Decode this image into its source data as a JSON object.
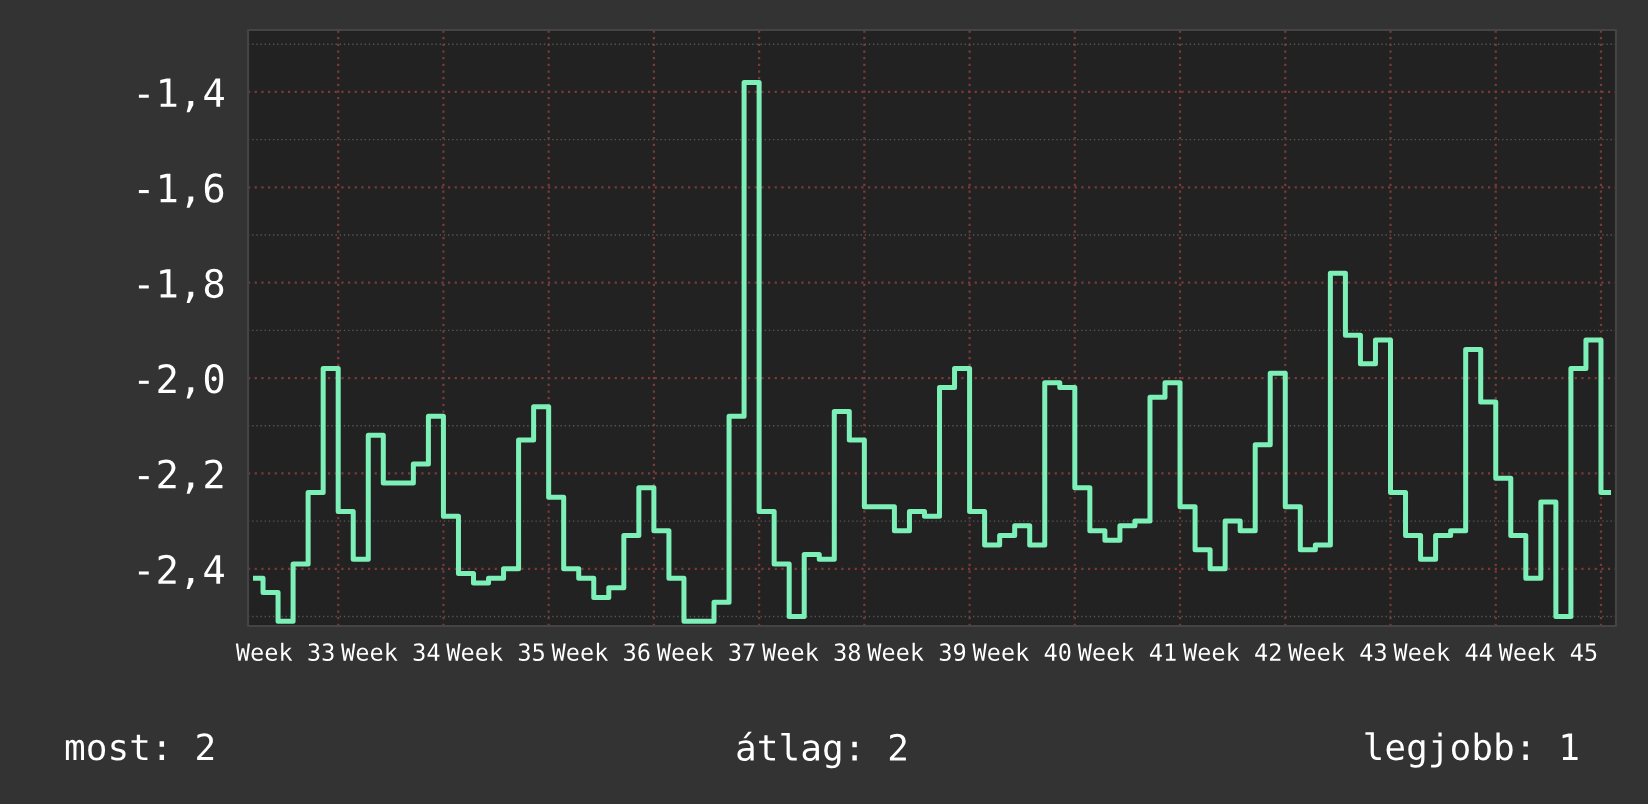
{
  "chart_data": {
    "type": "step",
    "categories": [
      null,
      null,
      "Week 33",
      null,
      null,
      null,
      null,
      null,
      null,
      "Week 34",
      null,
      null,
      null,
      null,
      null,
      null,
      "Week 35",
      null,
      null,
      null,
      null,
      null,
      null,
      "Week 36",
      null,
      null,
      null,
      null,
      null,
      null,
      "Week 37",
      null,
      null,
      null,
      null,
      null,
      null,
      "Week 38",
      null,
      null,
      null,
      null,
      null,
      null,
      "Week 39",
      null,
      null,
      null,
      null,
      null,
      null,
      "Week 40",
      null,
      null,
      null,
      null,
      null,
      null,
      "Week 41",
      null,
      null,
      null,
      null,
      null,
      null,
      "Week 42",
      null,
      null,
      null,
      null,
      null,
      null,
      "Week 43",
      null,
      null,
      null,
      null,
      null,
      null,
      "Week 44",
      null,
      null,
      null,
      null,
      null,
      null,
      "Week 45",
      null,
      null,
      null,
      null
    ],
    "series": [
      {
        "color": "#7df0b8",
        "values": [
          -2.42,
          -2.45,
          -2.51,
          -2.39,
          -2.24,
          -1.98,
          -2.28,
          -2.38,
          -2.12,
          -2.22,
          -2.22,
          -2.18,
          -2.08,
          -2.29,
          -2.41,
          -2.43,
          -2.42,
          -2.4,
          -2.13,
          -2.06,
          -2.25,
          -2.4,
          -2.42,
          -2.46,
          -2.44,
          -2.33,
          -2.23,
          -2.32,
          -2.42,
          -2.51,
          -2.51,
          -2.47,
          -2.08,
          -1.38,
          -2.28,
          -2.39,
          -2.5,
          -2.37,
          -2.38,
          -2.07,
          -2.13,
          -2.27,
          -2.27,
          -2.32,
          -2.28,
          -2.29,
          -2.02,
          -1.98,
          -2.28,
          -2.35,
          -2.33,
          -2.31,
          -2.35,
          -2.01,
          -2.02,
          -2.23,
          -2.32,
          -2.34,
          -2.31,
          -2.3,
          -2.04,
          -2.01,
          -2.27,
          -2.36,
          -2.4,
          -2.3,
          -2.32,
          -2.14,
          -1.99,
          -2.27,
          -2.36,
          -2.35,
          -1.78,
          -1.91,
          -1.97,
          -1.92,
          -2.24,
          -2.33,
          -2.38,
          -2.33,
          -2.32,
          -1.94,
          -2.05,
          -2.21,
          -2.33,
          -2.42,
          -2.26,
          -2.5,
          -1.98,
          -1.92,
          -2.24
        ]
      }
    ],
    "ylim": [
      -2.52,
      -1.27
    ],
    "yticks": [
      {
        "value": -2.4,
        "label": "-2,4"
      },
      {
        "value": -2.2,
        "label": "-2,2"
      },
      {
        "value": -2.0,
        "label": "-2,0"
      },
      {
        "value": -1.8,
        "label": "-1,8"
      },
      {
        "value": -1.6,
        "label": "-1,6"
      },
      {
        "value": -1.4,
        "label": "-1,4"
      }
    ],
    "grid": true,
    "annotations": [
      "most: 2",
      "átlag: 2",
      "legjobb: 1"
    ]
  }
}
